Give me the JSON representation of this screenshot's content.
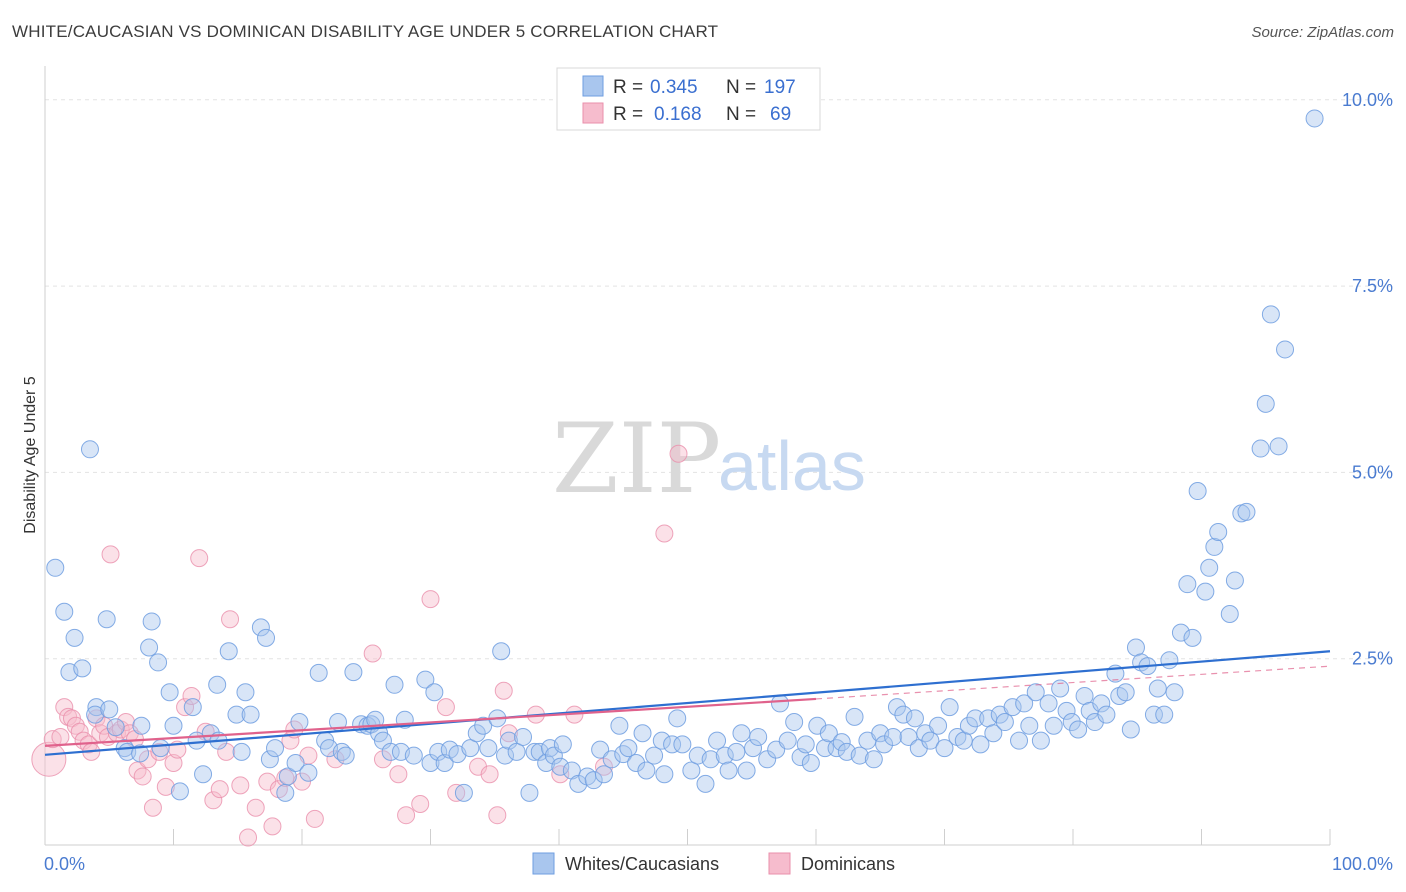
{
  "title": "WHITE/CAUCASIAN VS DOMINICAN DISABILITY AGE UNDER 5 CORRELATION CHART",
  "source": "Source: ZipAtlas.com",
  "watermark": {
    "zip": "ZIP",
    "atlas": "atlas"
  },
  "colors": {
    "blue_fill": "#a9c6ee",
    "blue_stroke": "#6e9ee0",
    "blue_line": "#2e6fd0",
    "pink_fill": "#f6bccd",
    "pink_stroke": "#ea8fab",
    "pink_line": "#e0628c",
    "grid": "#e3e3e3",
    "axis_text": "#4a7bd0"
  },
  "legend": {
    "rows": [
      {
        "r_label": "R =",
        "r_value": "0.345",
        "n_label": "N =",
        "n_value": "197"
      },
      {
        "r_label": "R =",
        "r_value": "0.168",
        "n_label": "N =",
        "n_value": "69"
      }
    ]
  },
  "bottom_legend": {
    "series1": "Whites/Caucasians",
    "series2": "Dominicans"
  },
  "chart_data": {
    "type": "scatter",
    "title": "WHITE/CAUCASIAN VS DOMINICAN DISABILITY AGE UNDER 5 CORRELATION CHART",
    "xlabel": "",
    "ylabel": "Disability Age Under 5",
    "xlim": [
      0,
      100
    ],
    "ylim": [
      0,
      10.4
    ],
    "x_tick_labels": [
      "0.0%",
      "100.0%"
    ],
    "y_ticks": [
      2.5,
      5.0,
      7.5,
      10.0
    ],
    "y_tick_labels": [
      "2.5%",
      "5.0%",
      "7.5%",
      "10.0%"
    ],
    "grid": true,
    "legend_position": "top-center",
    "series": [
      {
        "name": "Whites/Caucasians",
        "r": 0.345,
        "n": 197,
        "trend": {
          "x": [
            0,
            100
          ],
          "y": [
            1.21,
            2.6
          ]
        },
        "points": [
          [
            0.8,
            3.72
          ],
          [
            1.5,
            3.13
          ],
          [
            2.3,
            2.78
          ],
          [
            1.9,
            2.32
          ],
          [
            2.9,
            2.37
          ],
          [
            3.5,
            5.31
          ],
          [
            4.0,
            1.85
          ],
          [
            3.9,
            1.75
          ],
          [
            5.0,
            1.82
          ],
          [
            4.8,
            3.03
          ],
          [
            5.5,
            1.58
          ],
          [
            6.2,
            1.3
          ],
          [
            6.4,
            1.25
          ],
          [
            7.4,
            1.23
          ],
          [
            7.5,
            1.6
          ],
          [
            8.1,
            2.65
          ],
          [
            8.3,
            3.0
          ],
          [
            8.8,
            2.45
          ],
          [
            9.0,
            1.3
          ],
          [
            9.7,
            2.05
          ],
          [
            10.0,
            1.6
          ],
          [
            10.5,
            0.72
          ],
          [
            11.5,
            1.85
          ],
          [
            11.8,
            1.4
          ],
          [
            12.3,
            0.95
          ],
          [
            12.9,
            1.5
          ],
          [
            13.4,
            2.15
          ],
          [
            13.5,
            1.4
          ],
          [
            14.3,
            2.6
          ],
          [
            14.9,
            1.75
          ],
          [
            15.3,
            1.25
          ],
          [
            15.6,
            2.05
          ],
          [
            16.0,
            1.75
          ],
          [
            16.8,
            2.92
          ],
          [
            17.2,
            2.78
          ],
          [
            17.5,
            1.15
          ],
          [
            17.9,
            1.3
          ],
          [
            18.7,
            0.7
          ],
          [
            18.9,
            0.92
          ],
          [
            19.5,
            1.1
          ],
          [
            19.8,
            1.65
          ],
          [
            20.5,
            0.97
          ],
          [
            21.3,
            2.31
          ],
          [
            21.8,
            1.4
          ],
          [
            22.1,
            1.3
          ],
          [
            22.8,
            1.65
          ],
          [
            23.1,
            1.25
          ],
          [
            23.4,
            1.2
          ],
          [
            24.0,
            2.32
          ],
          [
            24.6,
            1.62
          ],
          [
            25.1,
            1.6
          ],
          [
            25.4,
            1.62
          ],
          [
            25.7,
            1.68
          ],
          [
            26.0,
            1.5
          ],
          [
            26.3,
            1.4
          ],
          [
            26.9,
            1.25
          ],
          [
            27.2,
            2.15
          ],
          [
            27.7,
            1.25
          ],
          [
            28.0,
            1.68
          ],
          [
            28.7,
            1.2
          ],
          [
            29.6,
            2.22
          ],
          [
            30.0,
            1.1
          ],
          [
            30.3,
            2.05
          ],
          [
            30.6,
            1.25
          ],
          [
            31.1,
            1.1
          ],
          [
            31.5,
            1.28
          ],
          [
            32.1,
            1.22
          ],
          [
            32.6,
            0.7
          ],
          [
            33.1,
            1.3
          ],
          [
            33.6,
            1.5
          ],
          [
            34.1,
            1.6
          ],
          [
            34.5,
            1.3
          ],
          [
            35.2,
            1.7
          ],
          [
            35.5,
            2.6
          ],
          [
            35.8,
            1.2
          ],
          [
            36.1,
            1.4
          ],
          [
            36.7,
            1.25
          ],
          [
            37.2,
            1.45
          ],
          [
            37.7,
            0.7
          ],
          [
            38.1,
            1.25
          ],
          [
            38.5,
            1.25
          ],
          [
            39.0,
            1.1
          ],
          [
            39.3,
            1.3
          ],
          [
            39.6,
            1.2
          ],
          [
            40.1,
            1.05
          ],
          [
            40.3,
            1.35
          ],
          [
            41.0,
            1.0
          ],
          [
            41.5,
            0.82
          ],
          [
            42.2,
            0.92
          ],
          [
            42.7,
            0.87
          ],
          [
            43.2,
            1.28
          ],
          [
            43.5,
            0.95
          ],
          [
            44.1,
            1.15
          ],
          [
            44.7,
            1.6
          ],
          [
            45.0,
            1.22
          ],
          [
            45.4,
            1.3
          ],
          [
            46.0,
            1.1
          ],
          [
            46.5,
            1.5
          ],
          [
            46.8,
            1.0
          ],
          [
            47.4,
            1.2
          ],
          [
            48.0,
            1.4
          ],
          [
            48.2,
            0.95
          ],
          [
            48.8,
            1.35
          ],
          [
            49.2,
            1.7
          ],
          [
            49.6,
            1.35
          ],
          [
            50.3,
            1.0
          ],
          [
            50.8,
            1.2
          ],
          [
            51.4,
            0.82
          ],
          [
            51.8,
            1.15
          ],
          [
            52.3,
            1.4
          ],
          [
            52.9,
            1.2
          ],
          [
            53.2,
            1.0
          ],
          [
            53.8,
            1.25
          ],
          [
            54.2,
            1.5
          ],
          [
            54.6,
            1.0
          ],
          [
            55.1,
            1.3
          ],
          [
            55.5,
            1.45
          ],
          [
            56.2,
            1.15
          ],
          [
            56.9,
            1.28
          ],
          [
            57.2,
            1.9
          ],
          [
            57.8,
            1.4
          ],
          [
            58.3,
            1.65
          ],
          [
            58.8,
            1.18
          ],
          [
            59.2,
            1.35
          ],
          [
            59.6,
            1.1
          ],
          [
            60.1,
            1.6
          ],
          [
            60.7,
            1.3
          ],
          [
            61.0,
            1.5
          ],
          [
            61.6,
            1.3
          ],
          [
            62.0,
            1.38
          ],
          [
            62.4,
            1.25
          ],
          [
            63.0,
            1.72
          ],
          [
            63.4,
            1.2
          ],
          [
            64.0,
            1.4
          ],
          [
            64.5,
            1.15
          ],
          [
            65.0,
            1.5
          ],
          [
            65.3,
            1.35
          ],
          [
            66.0,
            1.45
          ],
          [
            66.3,
            1.85
          ],
          [
            66.8,
            1.75
          ],
          [
            67.2,
            1.45
          ],
          [
            67.7,
            1.7
          ],
          [
            68.0,
            1.3
          ],
          [
            68.5,
            1.5
          ],
          [
            68.9,
            1.4
          ],
          [
            69.5,
            1.6
          ],
          [
            70.0,
            1.3
          ],
          [
            70.4,
            1.85
          ],
          [
            71.0,
            1.45
          ],
          [
            71.5,
            1.4
          ],
          [
            71.9,
            1.6
          ],
          [
            72.4,
            1.7
          ],
          [
            72.8,
            1.35
          ],
          [
            73.4,
            1.7
          ],
          [
            73.8,
            1.5
          ],
          [
            74.3,
            1.75
          ],
          [
            74.7,
            1.65
          ],
          [
            75.3,
            1.85
          ],
          [
            75.8,
            1.4
          ],
          [
            76.2,
            1.9
          ],
          [
            76.6,
            1.6
          ],
          [
            77.1,
            2.05
          ],
          [
            77.5,
            1.4
          ],
          [
            78.1,
            1.9
          ],
          [
            78.5,
            1.6
          ],
          [
            79.0,
            2.1
          ],
          [
            79.5,
            1.8
          ],
          [
            79.9,
            1.65
          ],
          [
            80.4,
            1.55
          ],
          [
            80.9,
            2.0
          ],
          [
            81.3,
            1.8
          ],
          [
            81.7,
            1.65
          ],
          [
            82.2,
            1.9
          ],
          [
            82.6,
            1.75
          ],
          [
            83.3,
            2.3
          ],
          [
            83.6,
            2.0
          ],
          [
            84.1,
            2.05
          ],
          [
            84.5,
            1.55
          ],
          [
            84.9,
            2.65
          ],
          [
            85.3,
            2.45
          ],
          [
            85.8,
            2.4
          ],
          [
            86.3,
            1.75
          ],
          [
            86.6,
            2.1
          ],
          [
            87.1,
            1.75
          ],
          [
            87.5,
            2.48
          ],
          [
            87.9,
            2.05
          ],
          [
            88.4,
            2.85
          ],
          [
            88.9,
            3.5
          ],
          [
            89.3,
            2.78
          ],
          [
            89.7,
            4.75
          ],
          [
            90.3,
            3.4
          ],
          [
            90.6,
            3.72
          ],
          [
            91.0,
            4.0
          ],
          [
            91.3,
            4.2
          ],
          [
            92.2,
            3.1
          ],
          [
            92.6,
            3.55
          ],
          [
            93.1,
            4.45
          ],
          [
            93.5,
            4.47
          ],
          [
            94.6,
            5.32
          ],
          [
            95.0,
            5.92
          ],
          [
            95.4,
            7.12
          ],
          [
            96.0,
            5.35
          ],
          [
            96.5,
            6.65
          ],
          [
            98.8,
            9.75
          ]
        ]
      },
      {
        "name": "Dominicans",
        "r": 0.168,
        "n": 69,
        "trend": {
          "x": [
            0,
            60
          ],
          "y": [
            1.33,
            1.96
          ]
        },
        "trend_dashed": {
          "x": [
            60,
            100
          ],
          "y": [
            1.96,
            2.4
          ]
        },
        "points": [
          [
            0.3,
            1.15
          ],
          [
            0.6,
            1.42
          ],
          [
            1.2,
            1.45
          ],
          [
            1.5,
            1.85
          ],
          [
            1.8,
            1.72
          ],
          [
            2.1,
            1.7
          ],
          [
            2.4,
            1.6
          ],
          [
            2.7,
            1.52
          ],
          [
            3.0,
            1.4
          ],
          [
            3.4,
            1.35
          ],
          [
            3.6,
            1.25
          ],
          [
            4.0,
            1.7
          ],
          [
            4.3,
            1.5
          ],
          [
            4.6,
            1.6
          ],
          [
            4.9,
            1.45
          ],
          [
            5.1,
            3.9
          ],
          [
            5.6,
            1.5
          ],
          [
            5.9,
            1.55
          ],
          [
            6.3,
            1.65
          ],
          [
            6.6,
            1.5
          ],
          [
            7.0,
            1.42
          ],
          [
            7.2,
            1.0
          ],
          [
            7.6,
            0.92
          ],
          [
            8.0,
            1.15
          ],
          [
            8.4,
            0.5
          ],
          [
            8.9,
            1.25
          ],
          [
            9.4,
            0.78
          ],
          [
            10.0,
            1.1
          ],
          [
            10.3,
            1.28
          ],
          [
            10.9,
            1.85
          ],
          [
            11.4,
            2.0
          ],
          [
            12.0,
            3.85
          ],
          [
            12.5,
            1.52
          ],
          [
            13.1,
            0.6
          ],
          [
            13.6,
            0.75
          ],
          [
            14.1,
            1.25
          ],
          [
            14.4,
            3.03
          ],
          [
            15.2,
            0.8
          ],
          [
            15.8,
            0.1
          ],
          [
            16.4,
            0.5
          ],
          [
            17.3,
            0.85
          ],
          [
            17.7,
            0.25
          ],
          [
            18.2,
            0.75
          ],
          [
            18.7,
            0.9
          ],
          [
            19.1,
            1.4
          ],
          [
            19.4,
            1.55
          ],
          [
            20.0,
            0.85
          ],
          [
            20.5,
            1.2
          ],
          [
            21.0,
            0.35
          ],
          [
            22.6,
            1.15
          ],
          [
            25.5,
            2.57
          ],
          [
            26.3,
            1.15
          ],
          [
            27.5,
            0.95
          ],
          [
            28.1,
            0.4
          ],
          [
            29.2,
            0.55
          ],
          [
            30.0,
            3.3
          ],
          [
            31.2,
            1.85
          ],
          [
            32.0,
            0.7
          ],
          [
            33.7,
            1.05
          ],
          [
            34.6,
            0.95
          ],
          [
            35.2,
            0.4
          ],
          [
            35.7,
            2.07
          ],
          [
            36.1,
            1.5
          ],
          [
            38.2,
            1.75
          ],
          [
            40.1,
            0.95
          ],
          [
            41.2,
            1.75
          ],
          [
            43.5,
            1.05
          ],
          [
            48.2,
            4.18
          ],
          [
            49.3,
            5.25
          ]
        ]
      }
    ]
  }
}
